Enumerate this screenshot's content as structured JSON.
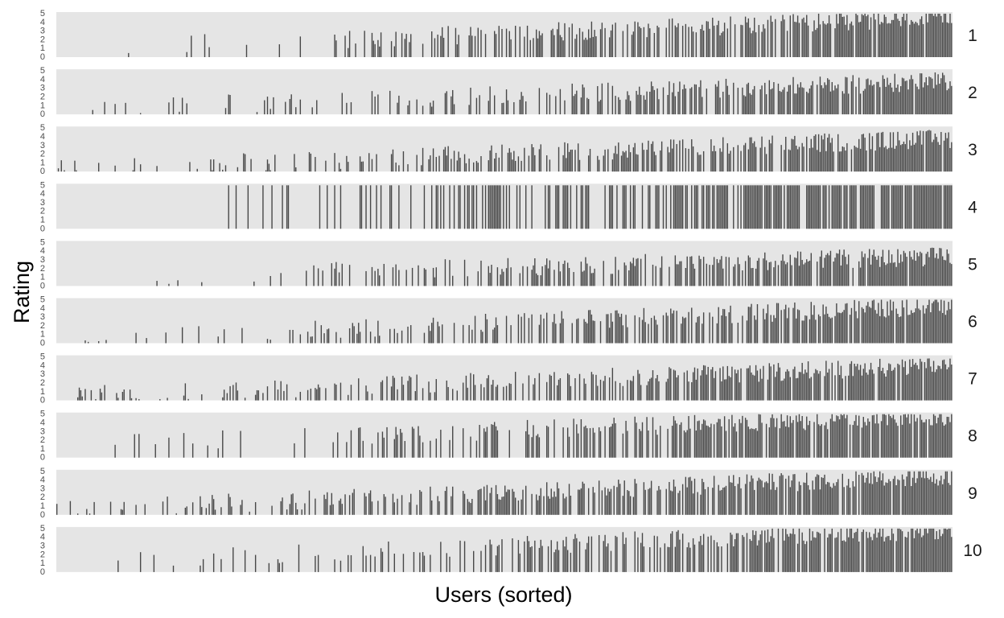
{
  "chart_data": {
    "type": "bar",
    "layout": "faceted-rows",
    "xlabel": "Users (sorted)",
    "ylabel": "Rating",
    "ylim": [
      0,
      5
    ],
    "y_ticks": [
      "0",
      "1",
      "2",
      "3",
      "4",
      "5"
    ],
    "x_ticks": [],
    "grid": false,
    "panel_background": "#e5e5e5",
    "bar_color": "#474747",
    "panels": [
      {
        "label": "1",
        "users": 600,
        "start": 0.05,
        "fill_start": 0.02,
        "fill_end": 0.99,
        "level_start": 1.0,
        "level_end": 4.5,
        "note": "dense right third, peaks near 5"
      },
      {
        "label": "2",
        "users": 600,
        "start": 0.04,
        "fill_start": 0.03,
        "fill_end": 0.96,
        "level_start": 0.6,
        "level_end": 3.8,
        "note": "moderate ratings"
      },
      {
        "label": "3",
        "users": 600,
        "start": 0.0,
        "fill_start": 0.1,
        "fill_end": 0.97,
        "level_start": 0.3,
        "level_end": 3.8,
        "note": "low-to-medium ratings"
      },
      {
        "label": "4",
        "users": 600,
        "start": 0.18,
        "fill_start": 0.0,
        "fill_end": 0.95,
        "level_start": 5.0,
        "level_end": 5.0,
        "note": "nearly all ratings are 5"
      },
      {
        "label": "5",
        "users": 600,
        "start": 0.05,
        "fill_start": 0.02,
        "fill_end": 0.96,
        "level_start": 1.0,
        "level_end": 3.4,
        "note": "moderate ratings"
      },
      {
        "label": "6",
        "users": 600,
        "start": 0.0,
        "fill_start": 0.08,
        "fill_end": 0.98,
        "level_start": 0.5,
        "level_end": 4.3,
        "note": "rising ratings"
      },
      {
        "label": "7",
        "users": 600,
        "start": 0.0,
        "fill_start": 0.18,
        "fill_end": 0.98,
        "level_start": 0.5,
        "level_end": 4.0,
        "note": "gradual rise"
      },
      {
        "label": "8",
        "users": 600,
        "start": 0.06,
        "fill_start": 0.0,
        "fill_end": 0.98,
        "level_start": 1.5,
        "level_end": 4.8,
        "note": "high ratings right half"
      },
      {
        "label": "9",
        "users": 600,
        "start": 0.0,
        "fill_start": 0.25,
        "fill_end": 0.99,
        "level_start": 0.6,
        "level_end": 4.5,
        "note": "gradual rise"
      },
      {
        "label": "10",
        "users": 600,
        "start": 0.04,
        "fill_start": 0.02,
        "fill_end": 0.99,
        "level_start": 1.2,
        "level_end": 4.9,
        "note": "high ratings right half"
      }
    ]
  }
}
